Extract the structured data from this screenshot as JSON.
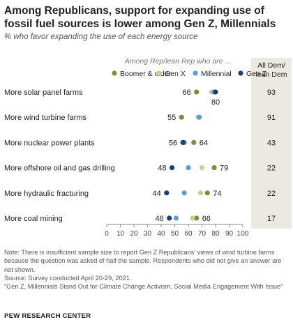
{
  "title": "Among Republicans, support for expanding use of fossil fuel sources is lower among Gen Z, Millennials",
  "subtitle": "% who favor expanding the use of each energy source",
  "group_header": "Among Rep/lean Rep who are ...",
  "side_column_header": "All Dem/ lean Dem",
  "colors": {
    "Boomer & older": "#7f8c3c",
    "Gen X": "#c6d192",
    "Millennial": "#5b9bd5",
    "Gen Z": "#1f3d6e",
    "side_column_bg": "#ece9e2"
  },
  "chart_data": {
    "type": "scatter",
    "categories": [
      "More solar panel farms",
      "More wind turbine farms",
      "More nuclear power plants",
      "More offshore oil and gas drilling",
      "More hydraulic fracturing",
      "More coal mining"
    ],
    "series": [
      {
        "name": "Boomer & older",
        "values": [
          66,
          55,
          64,
          79,
          74,
          66
        ]
      },
      {
        "name": "Gen X",
        "values": [
          77,
          67,
          57,
          70,
          69,
          63
        ]
      },
      {
        "name": "Millennial",
        "values": [
          79,
          68,
          57,
          60,
          57,
          51
        ]
      },
      {
        "name": "Gen Z",
        "values": [
          80,
          null,
          56,
          48,
          44,
          46
        ]
      }
    ],
    "labels": [
      {
        "row": 0,
        "value": 66,
        "text": "66",
        "position": "left"
      },
      {
        "row": 0,
        "value": 80,
        "text": "80",
        "position": "below"
      },
      {
        "row": 1,
        "value": 55,
        "text": "55",
        "position": "left"
      },
      {
        "row": 2,
        "value": 56,
        "text": "56",
        "position": "left"
      },
      {
        "row": 2,
        "value": 64,
        "text": "64",
        "position": "right"
      },
      {
        "row": 3,
        "value": 48,
        "text": "48",
        "position": "left"
      },
      {
        "row": 3,
        "value": 79,
        "text": "79",
        "position": "right"
      },
      {
        "row": 4,
        "value": 44,
        "text": "44",
        "position": "left"
      },
      {
        "row": 4,
        "value": 74,
        "text": "74",
        "position": "right"
      },
      {
        "row": 5,
        "value": 46,
        "text": "46",
        "position": "left"
      },
      {
        "row": 5,
        "value": 66,
        "text": "66",
        "position": "right"
      }
    ],
    "side_values": [
      93,
      91,
      43,
      22,
      22,
      17
    ],
    "xticks": [
      0,
      10,
      20,
      30,
      40,
      50,
      60,
      70,
      80,
      90,
      100
    ],
    "xlim": [
      0,
      100
    ]
  },
  "notes": {
    "note": "Note: There is insufficient sample size to report Gen Z Republicans' views of wind turbine farms because the question was asked of half the sample. Respondents who did not give an answer are not shown.",
    "source": "Source: Survey conducted April 20-29, 2021.",
    "report": "“Gen Z, Millennials Stand Out for Climate Change Activism, Social Media Engagement With Issue”",
    "org": "PEW RESEARCH CENTER"
  }
}
